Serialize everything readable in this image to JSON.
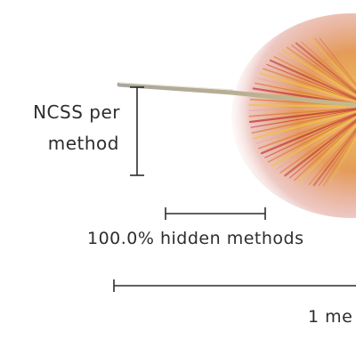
{
  "legend": {
    "height_scale": {
      "label_line1": "NCSS per",
      "label_line2": "method"
    },
    "width_scale": {
      "label": "100.0% hidden methods"
    },
    "length_scale": {
      "label": "1 me"
    }
  },
  "colors": {
    "ink": "#2d2d2d",
    "fan_red": "#c2343a",
    "fan_orange": "#e07a3a",
    "fan_yellow": "#efc24a",
    "fan_pink": "#e9a0b0",
    "stem": "#9c9a92"
  }
}
